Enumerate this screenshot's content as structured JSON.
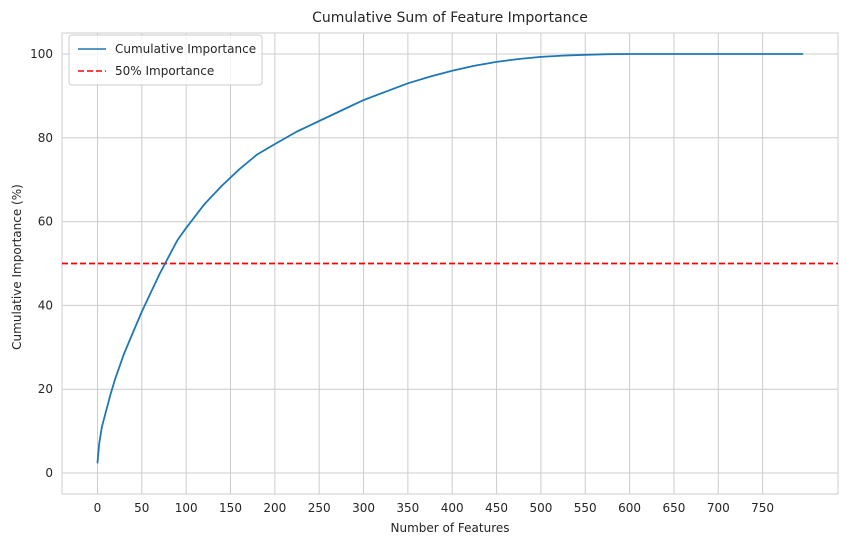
{
  "chart_data": {
    "type": "line",
    "title": "Cumulative Sum of Feature Importance",
    "xlabel": "Number of Features",
    "ylabel": "Cumulative Importance (%)",
    "xlim": [
      -40,
      835
    ],
    "ylim": [
      -5,
      105
    ],
    "xticks": [
      0,
      50,
      100,
      150,
      200,
      250,
      300,
      350,
      400,
      450,
      500,
      550,
      600,
      650,
      700,
      750
    ],
    "yticks": [
      0,
      20,
      40,
      60,
      80,
      100
    ],
    "grid": true,
    "legend_position": "top-left",
    "series": [
      {
        "name": "Cumulative Importance",
        "color": "#1f77b4",
        "style": "solid",
        "x": [
          0,
          2,
          5,
          10,
          15,
          20,
          30,
          40,
          50,
          60,
          70,
          80,
          90,
          100,
          120,
          140,
          160,
          180,
          200,
          225,
          250,
          275,
          300,
          325,
          350,
          375,
          400,
          425,
          450,
          475,
          500,
          525,
          550,
          575,
          600,
          650,
          700,
          750,
          795
        ],
        "y": [
          2.5,
          7,
          11,
          15,
          19,
          22.5,
          28.5,
          33.5,
          38.5,
          43,
          47.5,
          51.5,
          55.5,
          58.5,
          64,
          68.5,
          72.5,
          76,
          78.5,
          81.5,
          84,
          86.5,
          89,
          91,
          93,
          94.6,
          96,
          97.2,
          98.1,
          98.8,
          99.3,
          99.6,
          99.8,
          99.95,
          100,
          100,
          100,
          100,
          100
        ]
      }
    ],
    "hlines": [
      {
        "name": "50% Importance",
        "y": 50,
        "color": "#ff0000",
        "style": "dashed"
      }
    ]
  }
}
